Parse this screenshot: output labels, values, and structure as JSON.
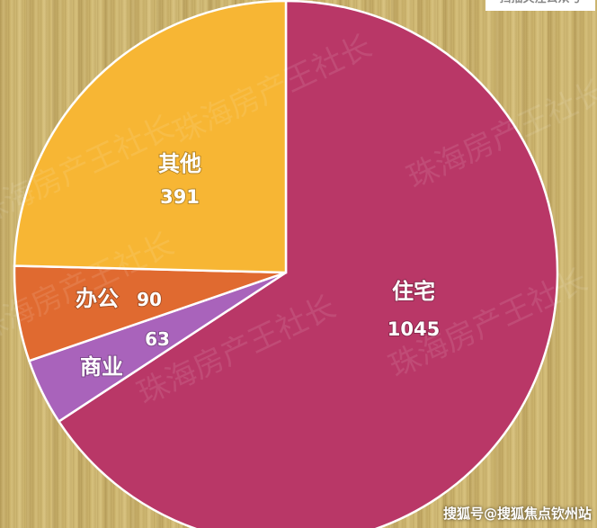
{
  "chart_data": {
    "type": "pie",
    "title": "",
    "start_angle": "12 o'clock",
    "direction": "clockwise",
    "slices": [
      {
        "label": "住宅",
        "value": 1045,
        "color": "#b93767"
      },
      {
        "label": "商业",
        "value": 63,
        "color": "#a963bb"
      },
      {
        "label": "办公",
        "value": 90,
        "color": "#e06a30"
      },
      {
        "label": "其他",
        "value": 391,
        "color": "#f7b634"
      }
    ],
    "slice_border_color": "#ffffff"
  },
  "watermark": "珠海房产王社长",
  "top_note": "扫描关注公众号",
  "footer": "搜狐号@搜狐焦点钦州站"
}
